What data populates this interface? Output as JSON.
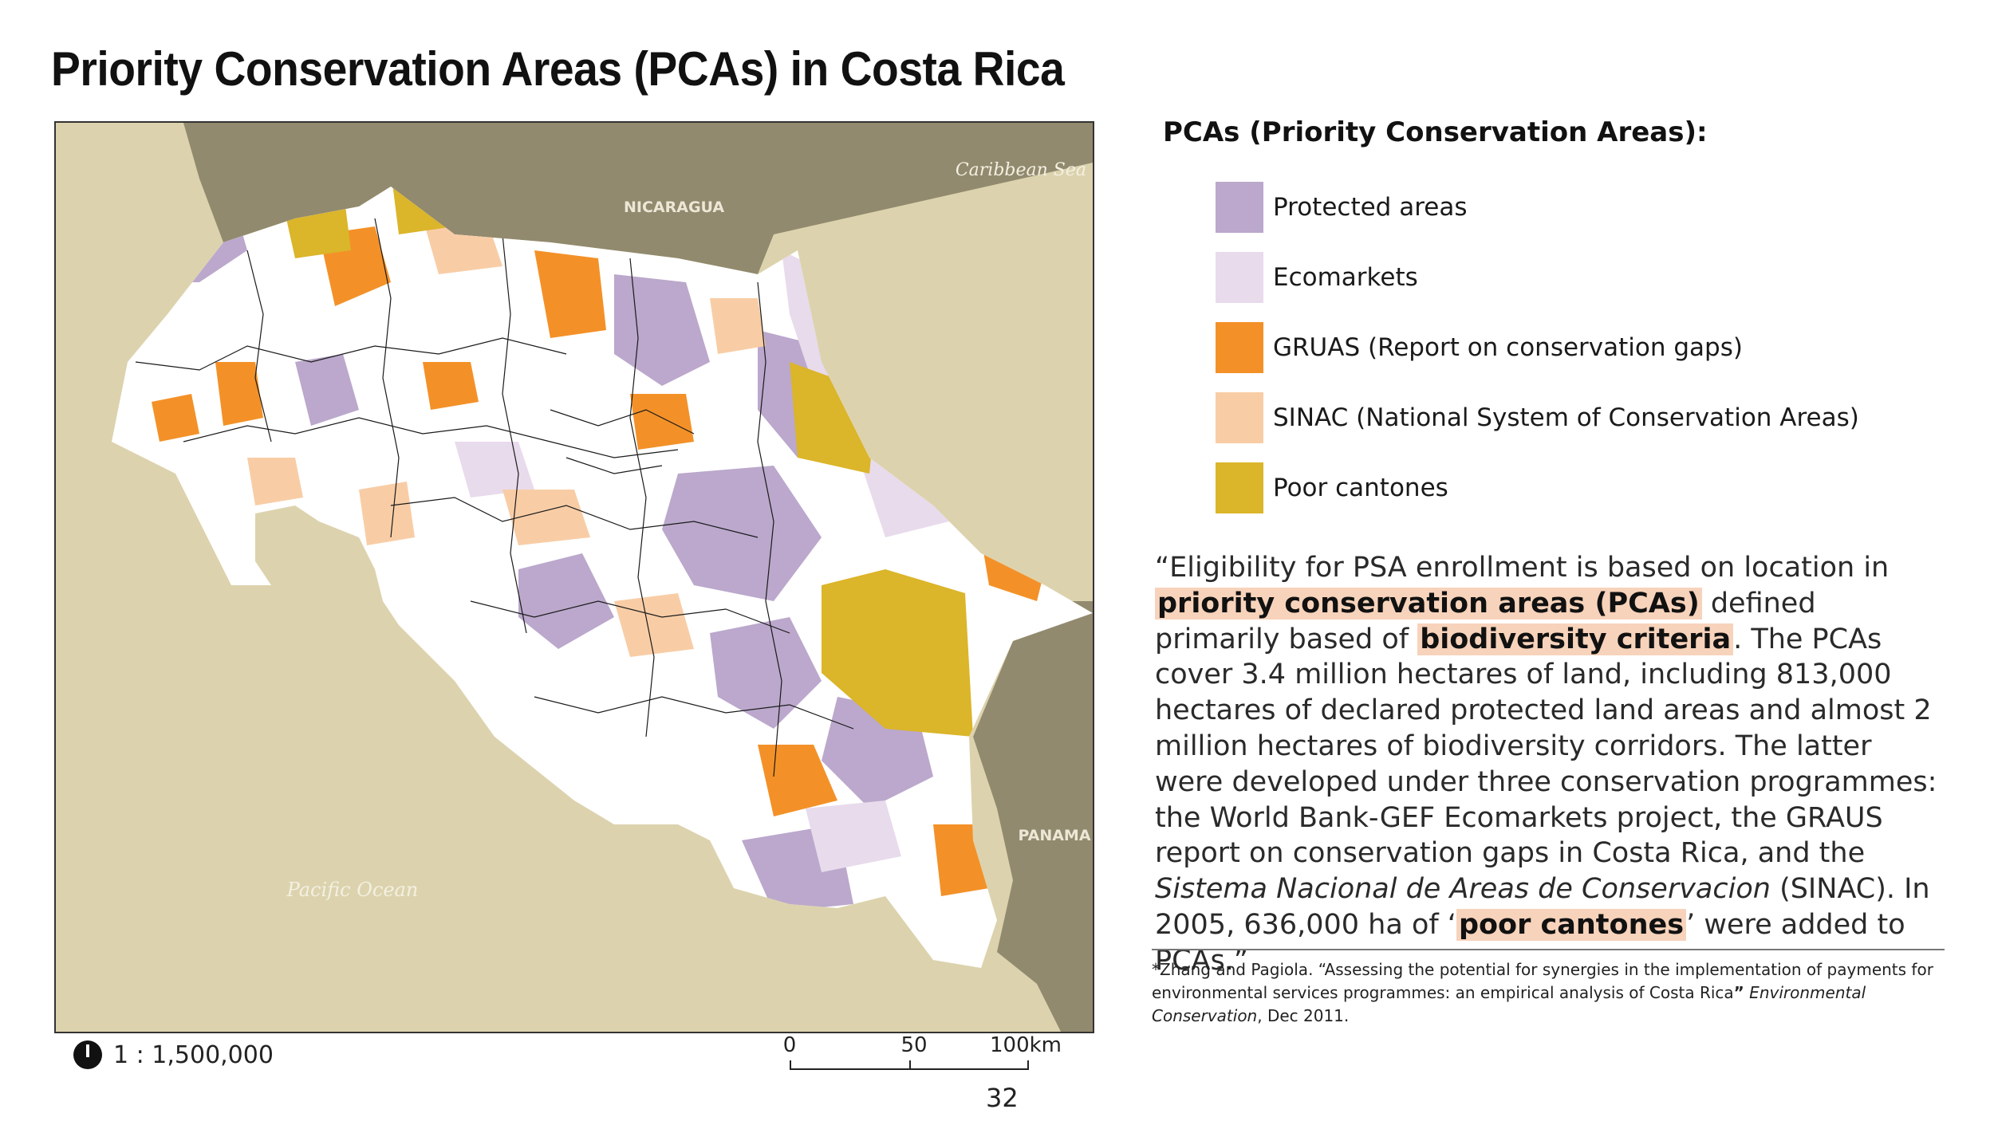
{
  "title": "Priority Conservation Areas (PCAs) in Costa Rica",
  "map": {
    "labels": {
      "nicaragua": "NICARAGUA",
      "caribbean": "Caribbean Sea",
      "panama": "PANAMA",
      "pacific": "Pacific Ocean"
    },
    "scale_ratio": "1 : 1,500,000",
    "scalebar": {
      "t0": "0",
      "t1": "50",
      "t2": "100km"
    },
    "colors": {
      "sea": "#dcd3ae",
      "neighbor_land": "#928a6e",
      "land": "#ffffff",
      "protected": "#bba8cc",
      "ecomarkets": "#e8dbec",
      "gruas": "#f39128",
      "sinac": "#f8cda6",
      "poor": "#dbb52a"
    }
  },
  "legend": {
    "title": "PCAs (Priority Conservation Areas):",
    "items": [
      {
        "label": "Protected areas",
        "color": "#bba8cc"
      },
      {
        "label": "Ecomarkets",
        "color": "#e8dbec"
      },
      {
        "label": "GRUAS (Report on conservation gaps)",
        "color": "#f39128"
      },
      {
        "label": "SINAC (National System of Conservation Areas)",
        "color": "#f8cda6"
      },
      {
        "label": "Poor cantones",
        "color": "#dbb52a"
      }
    ]
  },
  "quote": {
    "p1": "“Eligibility for PSA enrollment is based on location in ",
    "h1": "priority conservation areas (PCAs)",
    "p2": " defined primarily based of ",
    "h2": "biodiversity criteria",
    "p3": ".  The PCAs cover 3.4 million hectares of land, including 813,000 hectares of declared protected land areas and almost 2 million hectares of biodiversity corridors. The latter were developed under three conservation programmes: the World Bank-GEF Ecomarkets project, the GRAUS report on conservation gaps in Costa Rica, and the ",
    "italic": "Sistema Nacional de Areas de Conservacion",
    "p4": " (SINAC).  In 2005, 636,000 ha of ‘",
    "h3": "poor cantones",
    "p5": "’ were added to PCAs.”"
  },
  "citation": {
    "text": "*Zhang and Pagiola. “Assessing the potential for synergies in the implementation of payments for environmental services programmes: an empirical analysis of Costa Rica",
    "closing": "”",
    "journal": " Environmental Conservation",
    "date": ", Dec 2011."
  },
  "page_number": "32"
}
